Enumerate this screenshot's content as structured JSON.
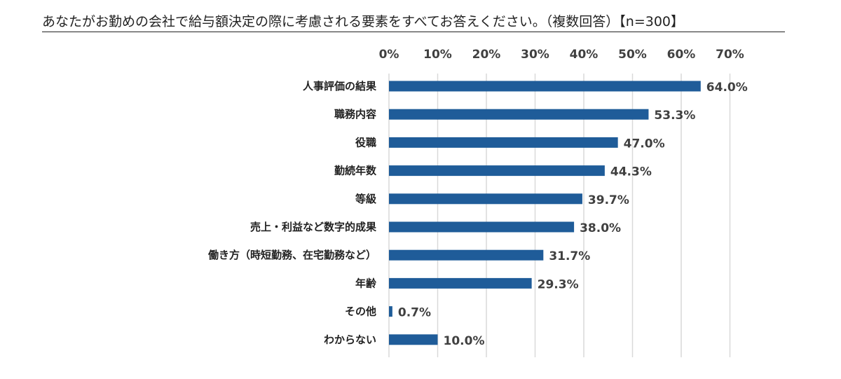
{
  "chart_data": {
    "type": "bar",
    "orientation": "horizontal",
    "title": "あなたがお勤めの会社で給与額決定の際に考慮される要素をすべてお答えください。（複数回答）【n=300】",
    "categories": [
      "人事評価の結果",
      "職務内容",
      "役職",
      "勤続年数",
      "等級",
      "売上・利益など数字的成果",
      "働き方（時短勤務、在宅勤務など）",
      "年齢",
      "その他",
      "わからない"
    ],
    "values": [
      64.0,
      53.3,
      47.0,
      44.3,
      39.7,
      38.0,
      31.7,
      29.3,
      0.7,
      10.0
    ],
    "value_labels": [
      "64.0%",
      "53.3%",
      "47.0%",
      "44.3%",
      "39.7%",
      "38.0%",
      "31.7%",
      "29.3%",
      "0.7%",
      "10.0%"
    ],
    "xlim": [
      0,
      70
    ],
    "x_ticks": [
      "0%",
      "10%",
      "20%",
      "30%",
      "40%",
      "50%",
      "60%",
      "70%"
    ],
    "x_axis_position": "top",
    "grid": true,
    "legend": "none",
    "bar_color": "#1f5c99",
    "grid_color": "#d9d9d9"
  }
}
